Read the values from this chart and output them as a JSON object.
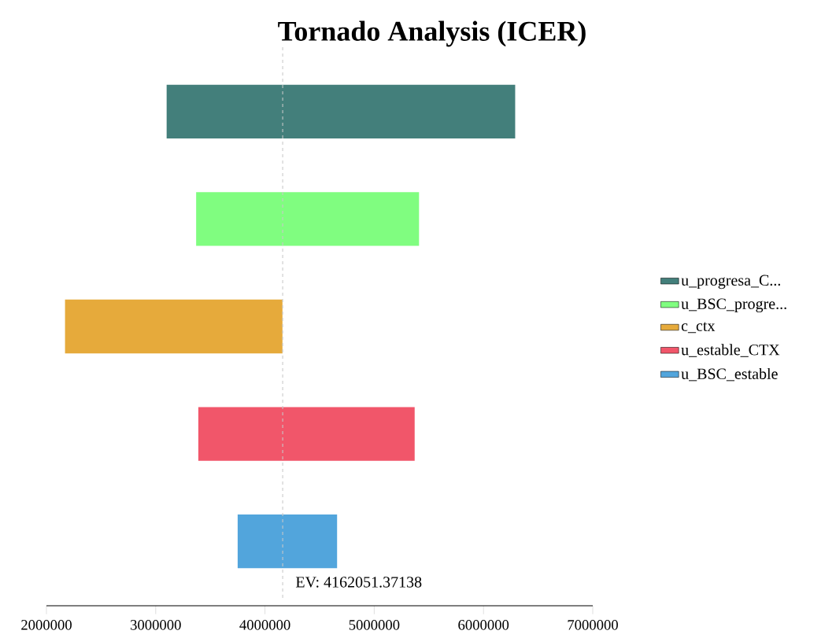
{
  "chart_data": {
    "type": "bar",
    "orientation": "horizontal",
    "title": "Tornado Analysis (ICER)",
    "categories": [
      null,
      null,
      null,
      null,
      null
    ],
    "series": [
      {
        "name": "u_progresa_C...",
        "color": "#437f7b",
        "values": [
          3190000,
          null,
          null,
          null,
          null
        ],
        "base": [
          3100000,
          null,
          null,
          null,
          null
        ]
      },
      {
        "name": "u_BSC_progre...",
        "color": "#80fd80",
        "values": [
          null,
          2040000,
          null,
          null,
          null
        ],
        "base": [
          null,
          3370000,
          null,
          null,
          null
        ]
      },
      {
        "name": "c_ctx",
        "color": "#e6aa3b",
        "values": [
          null,
          null,
          1990000,
          null,
          null
        ],
        "base": [
          null,
          null,
          2170000,
          null,
          null
        ]
      },
      {
        "name": "u_estable_CTX",
        "color": "#f1566a",
        "values": [
          null,
          null,
          null,
          1980000,
          null
        ],
        "base": [
          null,
          null,
          null,
          3390000,
          null
        ]
      },
      {
        "name": "u_BSC_estable",
        "color": "#52a5dc",
        "values": [
          null,
          null,
          null,
          null,
          910000
        ],
        "base": [
          null,
          null,
          null,
          null,
          3750000
        ]
      }
    ],
    "xlim": [
      2000000,
      7000000
    ],
    "xticks": [
      2000000,
      3000000,
      4000000,
      5000000,
      6000000,
      7000000
    ],
    "ref_lines": [
      {
        "axis": "x",
        "value": 4162051.37138,
        "label": "EV: 4162051.37138",
        "color": "#c8c8c8",
        "line_style": "dashed"
      }
    ],
    "legend": "right",
    "grid": false
  }
}
